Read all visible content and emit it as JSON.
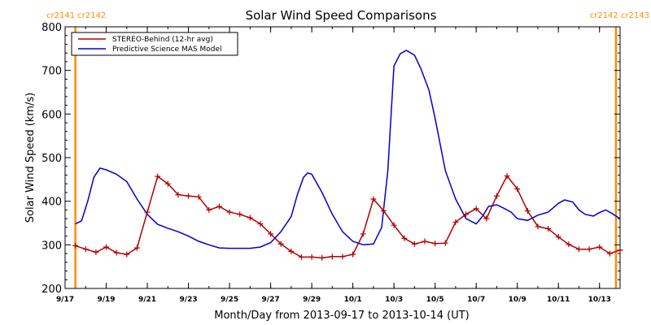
{
  "chart_data": {
    "type": "line",
    "title": "Solar Wind Speed Comparisons",
    "xlabel": "Month/Day from 2013-09-17 to 2013-10-14 (UT)",
    "ylabel": "Solar Wind Speed (km/s)",
    "ylim": [
      200,
      800
    ],
    "yticks": [
      200,
      300,
      400,
      500,
      600,
      700,
      800
    ],
    "xlim": [
      "2013-09-17",
      "2013-10-14"
    ],
    "xticks": [
      "9/17",
      "9/19",
      "9/21",
      "9/23",
      "9/25",
      "9/27",
      "9/29",
      "10/1",
      "10/3",
      "10/5",
      "10/7",
      "10/9",
      "10/11",
      "10/13"
    ],
    "legend_position": "top-left",
    "carrington_markers": [
      {
        "date": "2013-09-17.5",
        "label": "cr2141 cr2142",
        "label_side": "left"
      },
      {
        "date": "2013-10-13.8",
        "label": "cr2142 cr2143",
        "label_side": "right"
      }
    ],
    "series": [
      {
        "name": "STEREO-Behind (12-hr avg)",
        "color": "#b00000",
        "markers": true,
        "x": [
          "2013-09-17.5",
          "2013-09-18.0",
          "2013-09-18.5",
          "2013-09-19.0",
          "2013-09-19.5",
          "2013-09-20.0",
          "2013-09-20.5",
          "2013-09-21.0",
          "2013-09-21.5",
          "2013-09-22.0",
          "2013-09-22.5",
          "2013-09-23.0",
          "2013-09-23.5",
          "2013-09-24.0",
          "2013-09-24.5",
          "2013-09-25.0",
          "2013-09-25.5",
          "2013-09-26.0",
          "2013-09-26.5",
          "2013-09-27.0",
          "2013-09-27.5",
          "2013-09-28.0",
          "2013-09-28.5",
          "2013-09-29.0",
          "2013-09-29.5",
          "2013-09-30.0",
          "2013-09-30.5",
          "2013-10-01.0",
          "2013-10-01.5",
          "2013-10-02.0",
          "2013-10-02.5",
          "2013-10-03.0",
          "2013-10-03.5",
          "2013-10-04.0",
          "2013-10-04.5",
          "2013-10-05.0",
          "2013-10-05.5",
          "2013-10-06.0",
          "2013-10-06.5",
          "2013-10-07.0",
          "2013-10-07.5",
          "2013-10-08.0",
          "2013-10-08.5",
          "2013-10-09.0",
          "2013-10-09.5",
          "2013-10-10.0",
          "2013-10-10.5",
          "2013-10-11.0",
          "2013-10-11.5",
          "2013-10-12.0",
          "2013-10-12.5",
          "2013-10-13.0",
          "2013-10-13.5",
          "2013-10-14.0"
        ],
        "values": [
          298,
          290,
          283,
          295,
          282,
          278,
          293,
          375,
          457,
          440,
          415,
          412,
          410,
          380,
          388,
          375,
          370,
          362,
          348,
          325,
          302,
          285,
          272,
          272,
          270,
          273,
          273,
          278,
          325,
          405,
          378,
          345,
          315,
          302,
          308,
          303,
          304,
          352,
          370,
          383,
          360,
          412,
          458,
          428,
          378,
          342,
          337,
          318,
          301,
          290,
          290,
          295,
          280,
          288
        ]
      },
      {
        "name": "Predictive Science MAS Model",
        "color": "#0000cc",
        "markers": false,
        "x": [
          "2013-09-17.5",
          "2013-09-17.8",
          "2013-09-18.1",
          "2013-09-18.4",
          "2013-09-18.7",
          "2013-09-19.0",
          "2013-09-19.5",
          "2013-09-20.0",
          "2013-09-20.5",
          "2013-09-21.0",
          "2013-09-21.5",
          "2013-09-22.0",
          "2013-09-22.5",
          "2013-09-23.0",
          "2013-09-23.5",
          "2013-09-24.0",
          "2013-09-24.5",
          "2013-09-25.0",
          "2013-09-25.5",
          "2013-09-26.0",
          "2013-09-26.5",
          "2013-09-27.0",
          "2013-09-27.5",
          "2013-09-28.0",
          "2013-09-28.3",
          "2013-09-28.6",
          "2013-09-28.8",
          "2013-09-29.0",
          "2013-09-29.5",
          "2013-09-30.0",
          "2013-09-30.5",
          "2013-10-01.0",
          "2013-10-01.5",
          "2013-10-02.0",
          "2013-10-02.4",
          "2013-10-02.7",
          "2013-10-03.0",
          "2013-10-03.3",
          "2013-10-03.6",
          "2013-10-04.0",
          "2013-10-04.3",
          "2013-10-04.7",
          "2013-10-05.0",
          "2013-10-05.5",
          "2013-10-06.0",
          "2013-10-06.5",
          "2013-10-07.0",
          "2013-10-07.3",
          "2013-10-07.6",
          "2013-10-08.0",
          "2013-10-08.3",
          "2013-10-08.7",
          "2013-10-09.0",
          "2013-10-09.5",
          "2013-10-10.0",
          "2013-10-10.5",
          "2013-10-11.0",
          "2013-10-11.3",
          "2013-10-11.7",
          "2013-10-12.0",
          "2013-10-12.3",
          "2013-10-12.7",
          "2013-10-13.0",
          "2013-10-13.3",
          "2013-10-13.6",
          "2013-10-14.0"
        ],
        "values": [
          348,
          355,
          400,
          455,
          476,
          472,
          462,
          445,
          405,
          370,
          347,
          338,
          330,
          320,
          308,
          300,
          293,
          292,
          292,
          292,
          295,
          305,
          330,
          365,
          415,
          455,
          465,
          462,
          420,
          370,
          330,
          308,
          300,
          302,
          340,
          470,
          710,
          738,
          746,
          735,
          705,
          655,
          590,
          470,
          405,
          360,
          348,
          365,
          388,
          392,
          385,
          375,
          360,
          356,
          368,
          375,
          395,
          403,
          398,
          380,
          370,
          366,
          374,
          380,
          372,
          360
        ]
      }
    ]
  }
}
